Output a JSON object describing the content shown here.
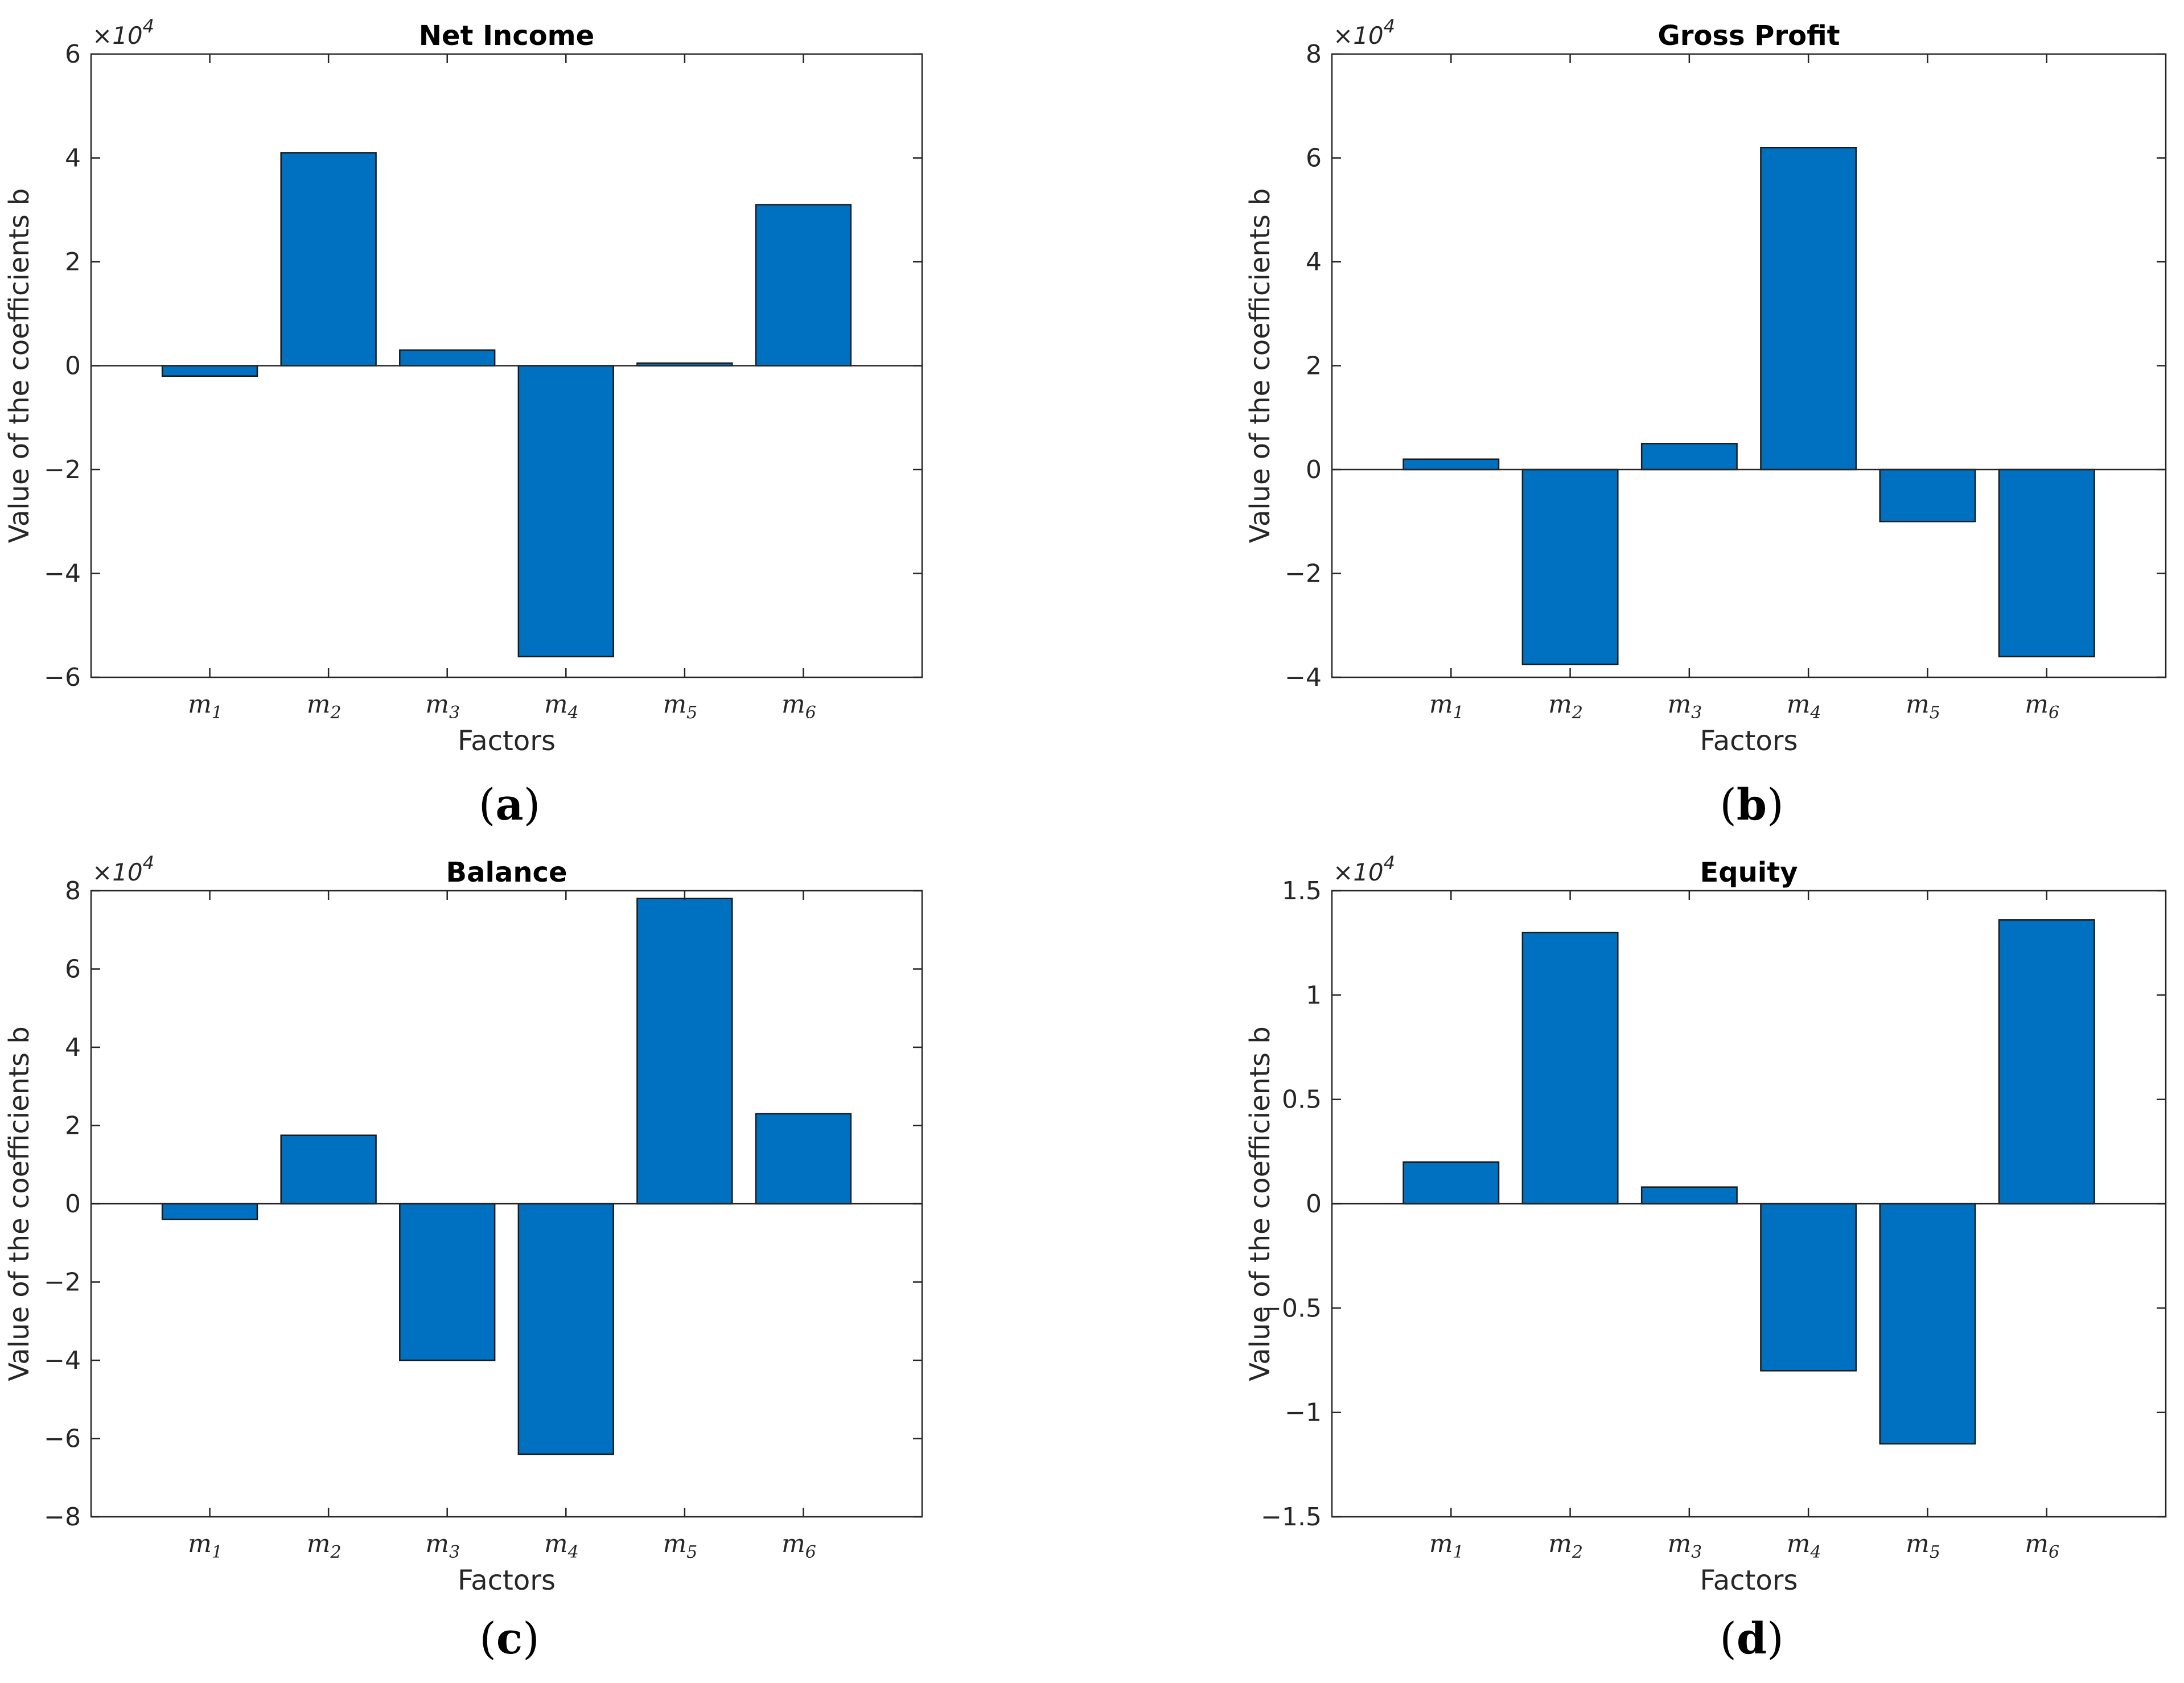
{
  "figure": {
    "bar_color": "#0070C0",
    "edge_color": "#1a1a1a"
  },
  "chart_data": [
    {
      "type": "bar",
      "panel_label": "(a)",
      "panel_letter": "a",
      "title": "Net Income",
      "xlabel": "Factors",
      "ylabel": "Value of the coefficients b",
      "exponent_label": "×10",
      "exponent_power": "4",
      "categories": [
        {
          "base": "m",
          "sub": "1"
        },
        {
          "base": "m",
          "sub": "2"
        },
        {
          "base": "m",
          "sub": "3"
        },
        {
          "base": "m",
          "sub": "4"
        },
        {
          "base": "m",
          "sub": "5"
        },
        {
          "base": "m",
          "sub": "6"
        }
      ],
      "values": [
        -2000,
        41000,
        3000,
        -56000,
        500,
        31000
      ],
      "ylim": [
        -60000,
        60000
      ],
      "yticks": [
        -60000,
        -40000,
        -20000,
        0,
        20000,
        40000,
        60000
      ],
      "ytick_labels": [
        "−6",
        "−4",
        "−2",
        "0",
        "2",
        "4",
        "6"
      ],
      "grid": false,
      "legend": "none"
    },
    {
      "type": "bar",
      "panel_label": "(b)",
      "panel_letter": "b",
      "title": "Gross Profit",
      "xlabel": "Factors",
      "ylabel": "Value of the coefficients b",
      "exponent_label": "×10",
      "exponent_power": "4",
      "categories": [
        {
          "base": "m",
          "sub": "1"
        },
        {
          "base": "m",
          "sub": "2"
        },
        {
          "base": "m",
          "sub": "3"
        },
        {
          "base": "m",
          "sub": "4"
        },
        {
          "base": "m",
          "sub": "5"
        },
        {
          "base": "m",
          "sub": "6"
        }
      ],
      "values": [
        2000,
        -37500,
        5000,
        62000,
        -10000,
        -36000
      ],
      "ylim": [
        -40000,
        80000
      ],
      "yticks": [
        -40000,
        -20000,
        0,
        20000,
        40000,
        60000,
        80000
      ],
      "ytick_labels": [
        "−4",
        "−2",
        "0",
        "2",
        "4",
        "6",
        "8"
      ],
      "grid": false,
      "legend": "none"
    },
    {
      "type": "bar",
      "panel_label": "(c)",
      "panel_letter": "c",
      "title": "Balance",
      "xlabel": "Factors",
      "ylabel": "Value of the coefficients b",
      "exponent_label": "×10",
      "exponent_power": "4",
      "categories": [
        {
          "base": "m",
          "sub": "1"
        },
        {
          "base": "m",
          "sub": "2"
        },
        {
          "base": "m",
          "sub": "3"
        },
        {
          "base": "m",
          "sub": "4"
        },
        {
          "base": "m",
          "sub": "5"
        },
        {
          "base": "m",
          "sub": "6"
        }
      ],
      "values": [
        -4000,
        17500,
        -40000,
        -64000,
        78000,
        23000
      ],
      "ylim": [
        -80000,
        80000
      ],
      "yticks": [
        -80000,
        -60000,
        -40000,
        -20000,
        0,
        20000,
        40000,
        60000,
        80000
      ],
      "ytick_labels": [
        "−8",
        "−6",
        "−4",
        "−2",
        "0",
        "2",
        "4",
        "6",
        "8"
      ],
      "grid": false,
      "legend": "none"
    },
    {
      "type": "bar",
      "panel_label": "(d)",
      "panel_letter": "d",
      "title": "Equity",
      "xlabel": "Factors",
      "ylabel": "Value of the coefficients b",
      "exponent_label": "×10",
      "exponent_power": "4",
      "categories": [
        {
          "base": "m",
          "sub": "1"
        },
        {
          "base": "m",
          "sub": "2"
        },
        {
          "base": "m",
          "sub": "3"
        },
        {
          "base": "m",
          "sub": "4"
        },
        {
          "base": "m",
          "sub": "5"
        },
        {
          "base": "m",
          "sub": "6"
        }
      ],
      "values": [
        2000,
        13000,
        800,
        -8000,
        -11500,
        13600
      ],
      "ylim": [
        -15000,
        15000
      ],
      "yticks": [
        -15000,
        -10000,
        -5000,
        0,
        5000,
        10000,
        15000
      ],
      "ytick_labels": [
        "−1.5",
        "−1",
        "−0.5",
        "0",
        "0.5",
        "1",
        "1.5"
      ],
      "grid": false,
      "legend": "none"
    }
  ]
}
